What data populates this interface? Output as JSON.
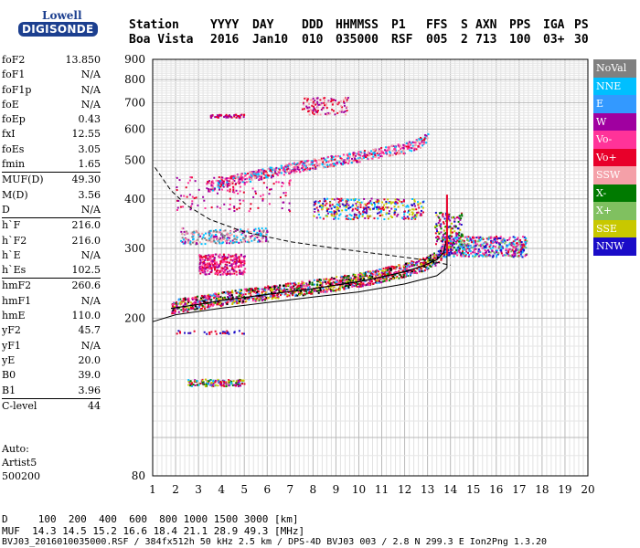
{
  "logo": {
    "line1": "Lowell",
    "line2": "DIGISONDE"
  },
  "header": {
    "station_label": "Station",
    "station_value": "Boa Vista",
    "yyyy_label": "YYYY",
    "yyyy_value": "2016",
    "day_label": "DAY",
    "day_value": "Jan10",
    "ddd_label": "DDD",
    "ddd_value": "010",
    "hhmmss_label": "HHMMSS",
    "hhmmss_value": "035000",
    "p1_label": "P1",
    "p1_value": "RSF",
    "ffs_label": "FFS",
    "ffs_value": "005",
    "s_label": "S",
    "s_value": "2",
    "axn_label": "AXN",
    "axn_value": "713",
    "pps_label": "PPS",
    "pps_value": "100",
    "iga_label": "IGA",
    "iga_value": "03+",
    "ps_label": "PS",
    "ps_value": "30"
  },
  "params": [
    {
      "label": "foF2",
      "value": "13.850"
    },
    {
      "label": "foF1",
      "value": "N/A"
    },
    {
      "label": "foF1p",
      "value": "N/A"
    },
    {
      "label": "foE",
      "value": "N/A"
    },
    {
      "label": "foEp",
      "value": "0.43"
    },
    {
      "label": "fxI",
      "value": "12.55"
    },
    {
      "label": "foEs",
      "value": "3.05"
    },
    {
      "label": "fmin",
      "value": "1.65"
    },
    {
      "label": "MUF(D)",
      "value": "49.30"
    },
    {
      "label": "M(D)",
      "value": "3.56"
    },
    {
      "label": "D",
      "value": "N/A"
    },
    {
      "label": "h`F",
      "value": "216.0"
    },
    {
      "label": "h`F2",
      "value": "216.0"
    },
    {
      "label": "h`E",
      "value": "N/A"
    },
    {
      "label": "h`Es",
      "value": "102.5"
    },
    {
      "label": "hmF2",
      "value": "260.6"
    },
    {
      "label": "hmF1",
      "value": "N/A"
    },
    {
      "label": "hmE",
      "value": "110.0"
    },
    {
      "label": "yF2",
      "value": "45.7"
    },
    {
      "label": "yF1",
      "value": "N/A"
    },
    {
      "label": "yE",
      "value": "20.0"
    },
    {
      "label": "B0",
      "value": "39.0"
    },
    {
      "label": "B1",
      "value": "3.96"
    },
    {
      "label": "C-level",
      "value": "44"
    }
  ],
  "auto": {
    "line1": "Auto:",
    "line2": "Artist5",
    "line3": "500200"
  },
  "legend": [
    {
      "label": "NoVal",
      "color": "#808080"
    },
    {
      "label": "NNE",
      "color": "#00bfff"
    },
    {
      "label": "E",
      "color": "#3399ff"
    },
    {
      "label": "W",
      "color": "#a000a0"
    },
    {
      "label": "Vo-",
      "color": "#ff3399"
    },
    {
      "label": "Vo+",
      "color": "#e8002a"
    },
    {
      "label": "SSW",
      "color": "#f4a0a8"
    },
    {
      "label": "X-",
      "color": "#007a00"
    },
    {
      "label": "X+",
      "color": "#80c060"
    },
    {
      "label": "SSE",
      "color": "#c8c800"
    },
    {
      "label": "NNW",
      "color": "#1a0cc8"
    }
  ],
  "footer": {
    "d_line": "D     100  200  400  600  800 1000 1500 3000 [km]",
    "muf_line": "MUF  14.3 14.5 15.2 16.6 18.4 21.1 28.9 49.3 [MHz]",
    "file_line": "BVJ03_2016010035000.RSF / 384fx512h 50 kHz 2.5 km / DPS-4D BVJ03 003 / 2.8 N 299.3 E Ion2Png 1.3.20"
  },
  "chart_data": {
    "type": "scatter",
    "title": "",
    "xlabel": "",
    "ylabel": "",
    "xlim": [
      1,
      20
    ],
    "ylim": [
      80,
      900
    ],
    "yscale": "log",
    "x_ticks": [
      1,
      2,
      3,
      4,
      5,
      6,
      7,
      8,
      9,
      10,
      11,
      12,
      13,
      14,
      15,
      16,
      17,
      18,
      19,
      20
    ],
    "y_ticks": [
      80,
      200,
      300,
      400,
      500,
      600,
      700,
      800,
      900
    ],
    "grid": true,
    "traces": [
      {
        "name": "o-trace",
        "color": "#e8002a",
        "points": [
          [
            1.8,
            215
          ],
          [
            3,
            220
          ],
          [
            4,
            225
          ],
          [
            5,
            229
          ],
          [
            6,
            233
          ],
          [
            7,
            237
          ],
          [
            8,
            241
          ],
          [
            9,
            246
          ],
          [
            10,
            251
          ],
          [
            11,
            258
          ],
          [
            12,
            266
          ],
          [
            12.8,
            275
          ],
          [
            13.4,
            285
          ],
          [
            13.7,
            297
          ],
          [
            13.85,
            325
          ]
        ]
      },
      {
        "name": "second-hop",
        "color": "#e8002a",
        "points": [
          [
            3.3,
            430
          ],
          [
            4,
            440
          ],
          [
            5,
            455
          ],
          [
            6,
            468
          ],
          [
            7,
            480
          ],
          [
            8,
            492
          ],
          [
            9,
            503
          ],
          [
            10,
            514
          ],
          [
            11,
            526
          ],
          [
            12,
            540
          ],
          [
            12.6,
            555
          ],
          [
            13,
            575
          ]
        ]
      },
      {
        "name": "es-trace",
        "color": "#808080",
        "points": [
          [
            2.3,
            320
          ],
          [
            3,
            322
          ],
          [
            4,
            323
          ],
          [
            5,
            325
          ],
          [
            6,
            326
          ]
        ]
      }
    ],
    "profile_curve": [
      [
        1.1,
        480
      ],
      [
        1.8,
        420
      ],
      [
        2.5,
        385
      ],
      [
        3.5,
        355
      ],
      [
        5,
        330
      ],
      [
        7,
        312
      ],
      [
        9,
        300
      ],
      [
        11,
        290
      ],
      [
        13,
        280
      ],
      [
        14,
        272
      ]
    ],
    "model_curve": [
      [
        1,
        196
      ],
      [
        2,
        204
      ],
      [
        4,
        212
      ],
      [
        6,
        219
      ],
      [
        8,
        226
      ],
      [
        10,
        233
      ],
      [
        12,
        244
      ],
      [
        13.4,
        256
      ],
      [
        13.85,
        268
      ],
      [
        13.85,
        300
      ]
    ]
  }
}
